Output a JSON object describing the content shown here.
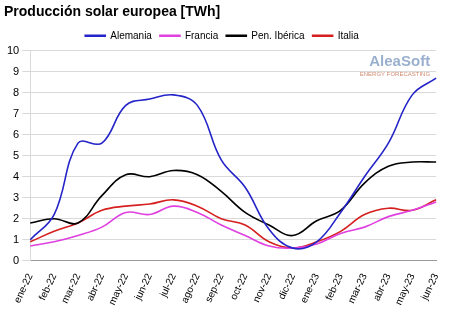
{
  "chart_data": {
    "type": "line",
    "title": "Producción solar europea [TWh]",
    "annotations": [
      "AleaSoft",
      "ENERGY FORECASTING"
    ],
    "categories": [
      "ene-22",
      "feb-22",
      "mar-22",
      "abr-22",
      "may-22",
      "jun-22",
      "jul-22",
      "ago-22",
      "sep-22",
      "oct-22",
      "nov-22",
      "dic-22",
      "ene-23",
      "feb-23",
      "mar-23",
      "abr-23",
      "may-23",
      "jun-23"
    ],
    "series": [
      {
        "name": "Alemania",
        "color": "#2424c8",
        "values": [
          1.0,
          2.2,
          5.6,
          5.6,
          7.4,
          7.7,
          7.9,
          7.4,
          4.8,
          3.5,
          1.5,
          0.6,
          0.9,
          2.3,
          4.0,
          5.6,
          7.9,
          8.7
        ]
      },
      {
        "name": "Francia",
        "color": "#e040e0",
        "values": [
          0.7,
          0.9,
          1.2,
          1.6,
          2.3,
          2.2,
          2.6,
          2.3,
          1.7,
          1.2,
          0.7,
          0.6,
          0.8,
          1.3,
          1.6,
          2.1,
          2.4,
          2.8
        ]
      },
      {
        "name": "Pen. Ibérica",
        "color": "#000000",
        "values": [
          1.8,
          2.0,
          1.8,
          3.1,
          4.1,
          4.0,
          4.3,
          4.1,
          3.3,
          2.3,
          1.7,
          1.2,
          1.9,
          2.4,
          3.7,
          4.5,
          4.7,
          4.7
        ]
      },
      {
        "name": "Italia",
        "color": "#d62020",
        "values": [
          0.9,
          1.4,
          1.8,
          2.4,
          2.6,
          2.7,
          2.9,
          2.6,
          2.0,
          1.7,
          0.9,
          0.6,
          0.9,
          1.4,
          2.2,
          2.5,
          2.4,
          2.9
        ]
      }
    ],
    "ylim": [
      0,
      10
    ],
    "yticks": [
      0,
      1,
      2,
      3,
      4,
      5,
      6,
      7,
      8,
      9,
      10
    ],
    "grid": true,
    "legend": "top"
  }
}
